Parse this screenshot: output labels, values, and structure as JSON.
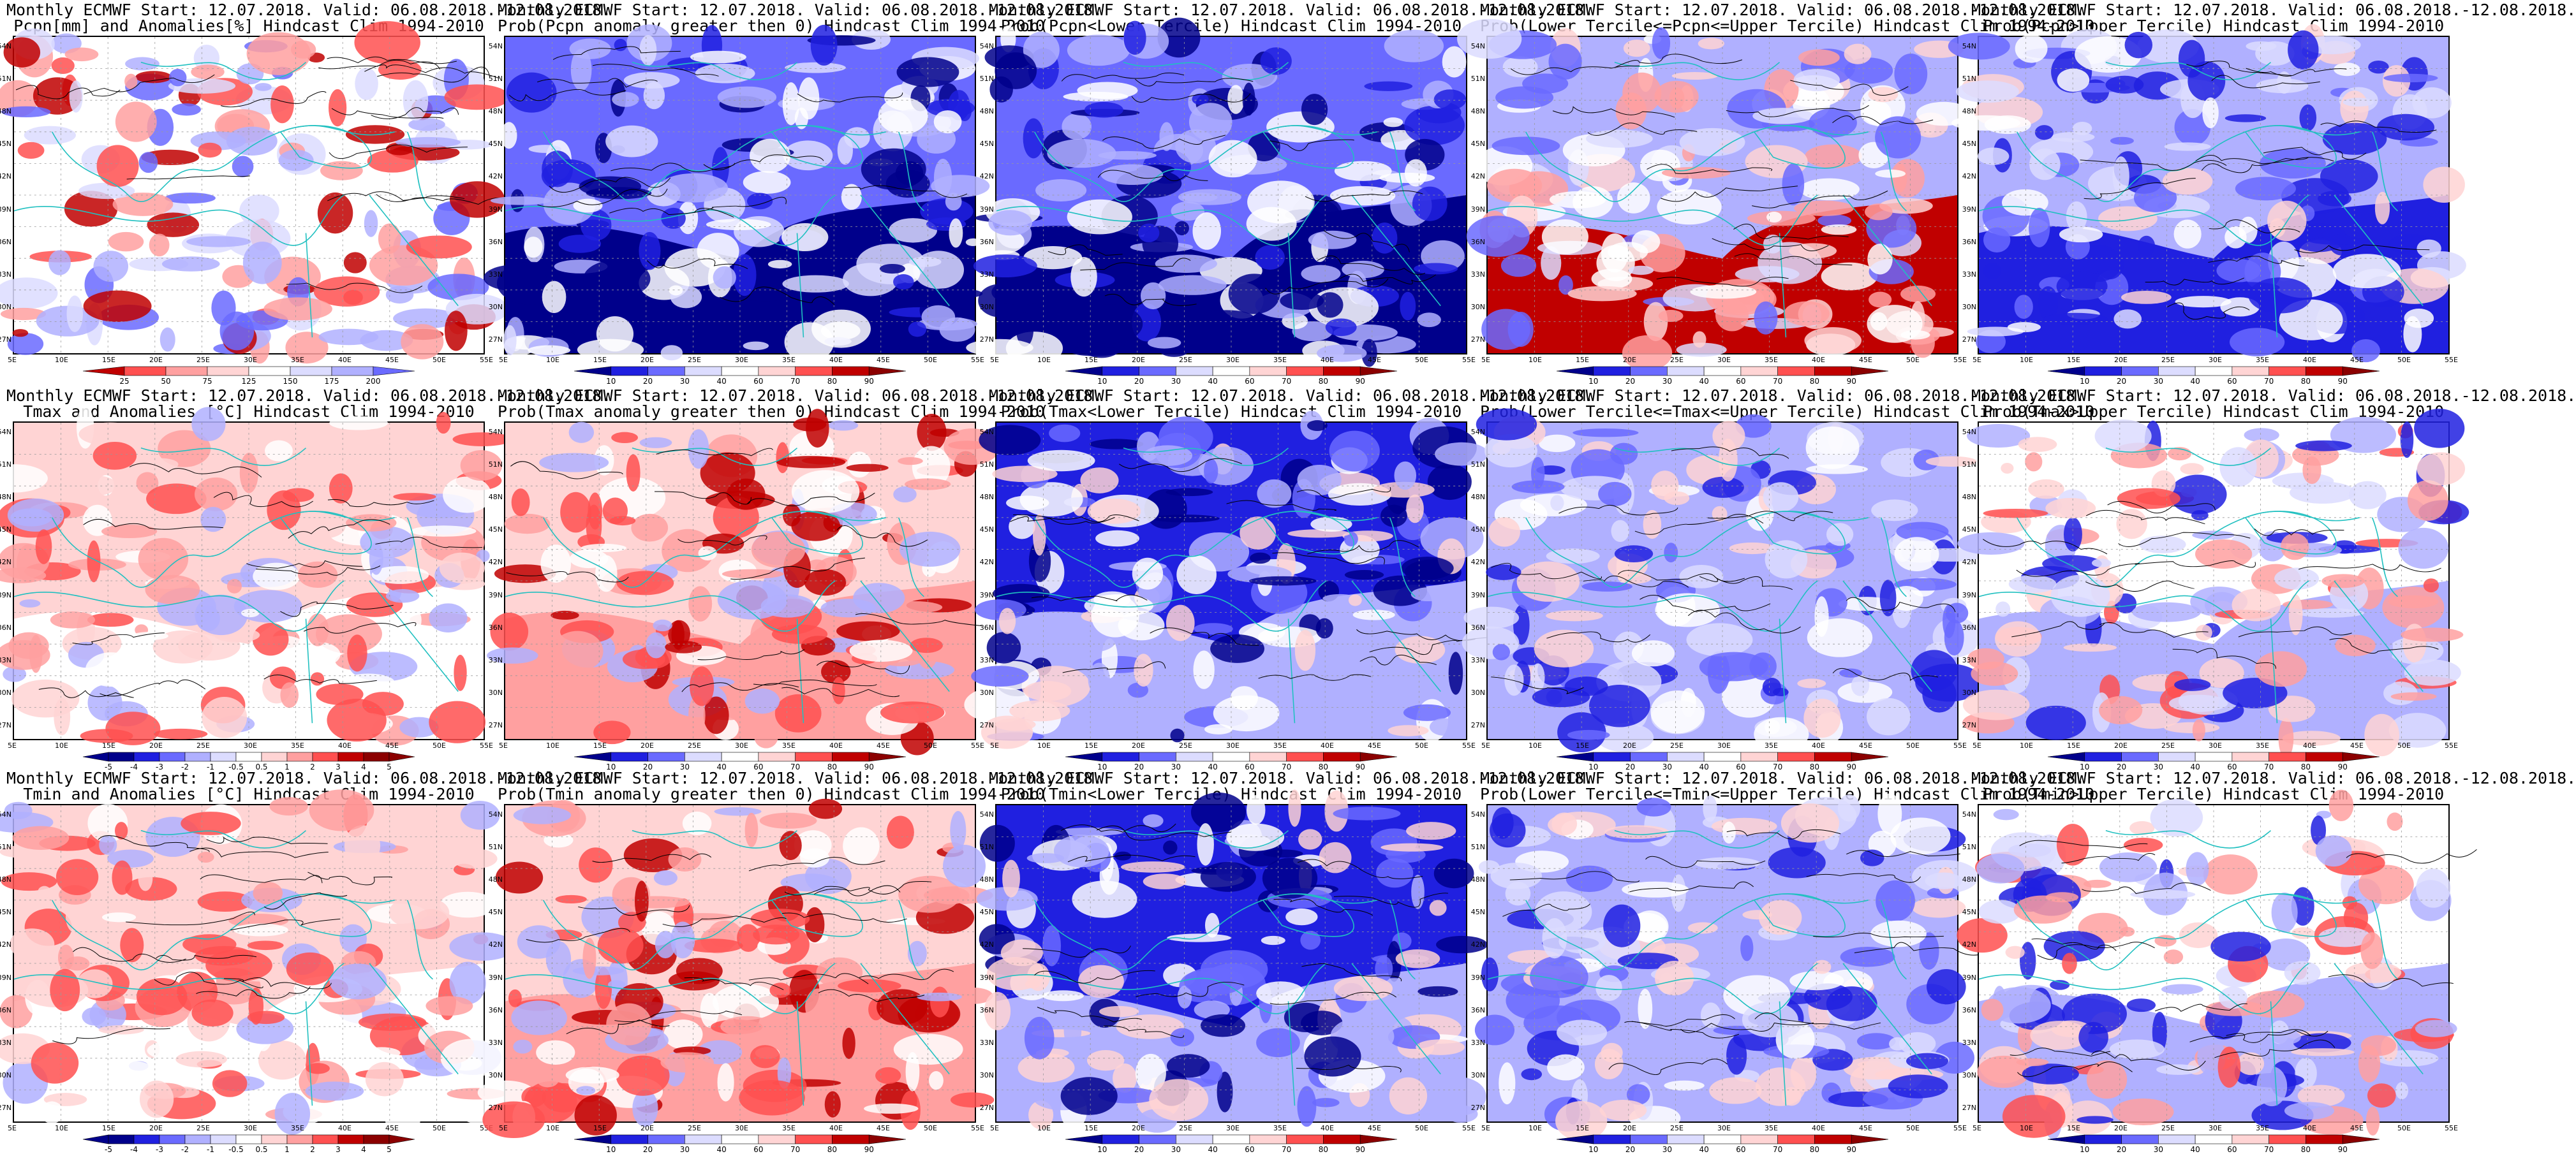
{
  "header_line": "Monthly ECMWF Start: 12.07.2018. Valid: 06.08.2018.-12.08.2018.",
  "colors": {
    "dark_blue": "#00008b",
    "blue": "#2020e0",
    "mid_blue": "#6a6aff",
    "light_blue": "#b0b0ff",
    "pale_blue": "#dcdcff",
    "white": "#ffffff",
    "pale_red": "#ffd4d4",
    "light_red": "#ffa0a0",
    "red": "#ff5050",
    "dark_red": "#c00000",
    "coast": "#20c0c0",
    "contour": "#000000"
  },
  "lon_labels": [
    "5E",
    "10E",
    "15E",
    "20E",
    "25E",
    "30E",
    "35E",
    "40E",
    "45E",
    "50E",
    "55E"
  ],
  "lat_labels": [
    "54N",
    "51N",
    "48N",
    "45N",
    "42N",
    "39N",
    "36N",
    "33N",
    "30N",
    "27N"
  ],
  "panels": [
    {
      "subtitle": "Pcpn[mm] and Anomalies[%] Hindcast Clim 1994-2010",
      "colorbar": [
        "25",
        "50",
        "75",
        "125",
        "150",
        "175",
        "200"
      ],
      "scheme": "pcpn_anom"
    },
    {
      "subtitle": "Prob(Pcpn anomaly greater then 0) Hindcast Clim 1994-2010",
      "colorbar": [
        "10",
        "20",
        "30",
        "40",
        "60",
        "70",
        "80",
        "90"
      ],
      "scheme": "prob_blue"
    },
    {
      "subtitle": "Prob(Pcpn<Lower Tercile) Hindcast Clim 1994-2010",
      "colorbar": [
        "10",
        "20",
        "30",
        "40",
        "60",
        "70",
        "80",
        "90"
      ],
      "scheme": "prob_darkblue"
    },
    {
      "subtitle": "Prob(Lower Tercile<=Pcpn<=Upper Tercile) Hindcast Clim 1994-2010",
      "colorbar": [
        "10",
        "20",
        "30",
        "40",
        "60",
        "70",
        "80",
        "90"
      ],
      "scheme": "prob_red_south"
    },
    {
      "subtitle": "Prob(Pcpn>Upper Tercile) Hindcast Clim 1994-2010",
      "colorbar": [
        "10",
        "20",
        "30",
        "40",
        "60",
        "70",
        "80",
        "90"
      ],
      "scheme": "prob_blue_south"
    },
    {
      "subtitle": "Tmax and Anomalies [°C] Hindcast Clim 1994-2010",
      "colorbar": [
        "-5",
        "-4",
        "-3",
        "-2",
        "-1",
        "-0.5",
        "0.5",
        "1",
        "2",
        "3",
        "4",
        "5"
      ],
      "scheme": "temp_anom"
    },
    {
      "subtitle": "Prob(Tmax anomaly greater then 0) Hindcast Clim 1994-2010",
      "colorbar": [
        "10",
        "20",
        "30",
        "40",
        "60",
        "70",
        "80",
        "90"
      ],
      "scheme": "prob_red"
    },
    {
      "subtitle": "Prob(Tmax<Lower Tercile) Hindcast Clim 1994-2010",
      "colorbar": [
        "10",
        "20",
        "30",
        "40",
        "60",
        "70",
        "80",
        "90"
      ],
      "scheme": "prob_deepblue"
    },
    {
      "subtitle": "Prob(Lower Tercile<=Tmax<=Upper Tercile) Hindcast Clim 1994-2010",
      "colorbar": [
        "10",
        "20",
        "30",
        "40",
        "60",
        "70",
        "80",
        "90"
      ],
      "scheme": "prob_midblue"
    },
    {
      "subtitle": "Prob(Tmax>Upper Tercile) Hindcast Clim 1994-2010",
      "colorbar": [
        "10",
        "20",
        "30",
        "40",
        "60",
        "70",
        "80",
        "90"
      ],
      "scheme": "prob_mixed"
    },
    {
      "subtitle": "Tmin and Anomalies [°C] Hindcast Clim 1994-2010",
      "colorbar": [
        "-5",
        "-4",
        "-3",
        "-2",
        "-1",
        "-0.5",
        "0.5",
        "1",
        "2",
        "3",
        "4",
        "5"
      ],
      "scheme": "temp_anom"
    },
    {
      "subtitle": "Prob(Tmin anomaly greater then 0) Hindcast Clim 1994-2010",
      "colorbar": [
        "10",
        "20",
        "30",
        "40",
        "60",
        "70",
        "80",
        "90"
      ],
      "scheme": "prob_red"
    },
    {
      "subtitle": "Prob(Tmin<Lower Tercile) Hindcast Clim 1994-2010",
      "colorbar": [
        "10",
        "20",
        "30",
        "40",
        "60",
        "70",
        "80",
        "90"
      ],
      "scheme": "prob_deepblue"
    },
    {
      "subtitle": "Prob(Lower Tercile<=Tmin<=Upper Tercile) Hindcast Clim 1994-2010",
      "colorbar": [
        "10",
        "20",
        "30",
        "40",
        "60",
        "70",
        "80",
        "90"
      ],
      "scheme": "prob_midblue"
    },
    {
      "subtitle": "Prob(Tmin>Upper Tercile) Hindcast Clim 1994-2010",
      "colorbar": [
        "10",
        "20",
        "30",
        "40",
        "60",
        "70",
        "80",
        "90"
      ],
      "scheme": "prob_mixed"
    }
  ]
}
